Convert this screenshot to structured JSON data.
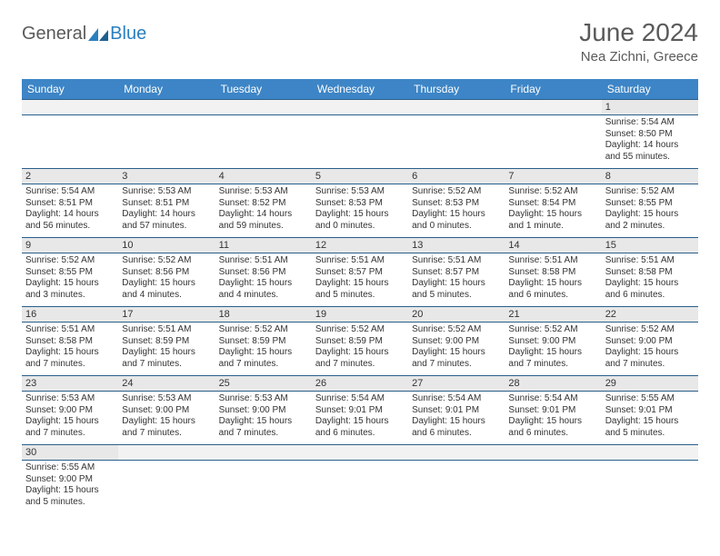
{
  "brand": {
    "general": "General",
    "blue": "Blue"
  },
  "title": "June 2024",
  "location": "Nea Zichni, Greece",
  "colors": {
    "header_bg": "#3d85c6",
    "header_text": "#ffffff",
    "daynum_bg": "#e8e8e8",
    "cell_border": "#2a5f8a",
    "text": "#333333",
    "logo_gray": "#5a5a5a",
    "logo_blue": "#2a7fbf",
    "title_color": "#5a5a5a"
  },
  "weekdays": [
    "Sunday",
    "Monday",
    "Tuesday",
    "Wednesday",
    "Thursday",
    "Friday",
    "Saturday"
  ],
  "weeks": [
    [
      null,
      null,
      null,
      null,
      null,
      null,
      {
        "n": "1",
        "sr": "Sunrise: 5:54 AM",
        "ss": "Sunset: 8:50 PM",
        "dl": "Daylight: 14 hours and 55 minutes."
      }
    ],
    [
      {
        "n": "2",
        "sr": "Sunrise: 5:54 AM",
        "ss": "Sunset: 8:51 PM",
        "dl": "Daylight: 14 hours and 56 minutes."
      },
      {
        "n": "3",
        "sr": "Sunrise: 5:53 AM",
        "ss": "Sunset: 8:51 PM",
        "dl": "Daylight: 14 hours and 57 minutes."
      },
      {
        "n": "4",
        "sr": "Sunrise: 5:53 AM",
        "ss": "Sunset: 8:52 PM",
        "dl": "Daylight: 14 hours and 59 minutes."
      },
      {
        "n": "5",
        "sr": "Sunrise: 5:53 AM",
        "ss": "Sunset: 8:53 PM",
        "dl": "Daylight: 15 hours and 0 minutes."
      },
      {
        "n": "6",
        "sr": "Sunrise: 5:52 AM",
        "ss": "Sunset: 8:53 PM",
        "dl": "Daylight: 15 hours and 0 minutes."
      },
      {
        "n": "7",
        "sr": "Sunrise: 5:52 AM",
        "ss": "Sunset: 8:54 PM",
        "dl": "Daylight: 15 hours and 1 minute."
      },
      {
        "n": "8",
        "sr": "Sunrise: 5:52 AM",
        "ss": "Sunset: 8:55 PM",
        "dl": "Daylight: 15 hours and 2 minutes."
      }
    ],
    [
      {
        "n": "9",
        "sr": "Sunrise: 5:52 AM",
        "ss": "Sunset: 8:55 PM",
        "dl": "Daylight: 15 hours and 3 minutes."
      },
      {
        "n": "10",
        "sr": "Sunrise: 5:52 AM",
        "ss": "Sunset: 8:56 PM",
        "dl": "Daylight: 15 hours and 4 minutes."
      },
      {
        "n": "11",
        "sr": "Sunrise: 5:51 AM",
        "ss": "Sunset: 8:56 PM",
        "dl": "Daylight: 15 hours and 4 minutes."
      },
      {
        "n": "12",
        "sr": "Sunrise: 5:51 AM",
        "ss": "Sunset: 8:57 PM",
        "dl": "Daylight: 15 hours and 5 minutes."
      },
      {
        "n": "13",
        "sr": "Sunrise: 5:51 AM",
        "ss": "Sunset: 8:57 PM",
        "dl": "Daylight: 15 hours and 5 minutes."
      },
      {
        "n": "14",
        "sr": "Sunrise: 5:51 AM",
        "ss": "Sunset: 8:58 PM",
        "dl": "Daylight: 15 hours and 6 minutes."
      },
      {
        "n": "15",
        "sr": "Sunrise: 5:51 AM",
        "ss": "Sunset: 8:58 PM",
        "dl": "Daylight: 15 hours and 6 minutes."
      }
    ],
    [
      {
        "n": "16",
        "sr": "Sunrise: 5:51 AM",
        "ss": "Sunset: 8:58 PM",
        "dl": "Daylight: 15 hours and 7 minutes."
      },
      {
        "n": "17",
        "sr": "Sunrise: 5:51 AM",
        "ss": "Sunset: 8:59 PM",
        "dl": "Daylight: 15 hours and 7 minutes."
      },
      {
        "n": "18",
        "sr": "Sunrise: 5:52 AM",
        "ss": "Sunset: 8:59 PM",
        "dl": "Daylight: 15 hours and 7 minutes."
      },
      {
        "n": "19",
        "sr": "Sunrise: 5:52 AM",
        "ss": "Sunset: 8:59 PM",
        "dl": "Daylight: 15 hours and 7 minutes."
      },
      {
        "n": "20",
        "sr": "Sunrise: 5:52 AM",
        "ss": "Sunset: 9:00 PM",
        "dl": "Daylight: 15 hours and 7 minutes."
      },
      {
        "n": "21",
        "sr": "Sunrise: 5:52 AM",
        "ss": "Sunset: 9:00 PM",
        "dl": "Daylight: 15 hours and 7 minutes."
      },
      {
        "n": "22",
        "sr": "Sunrise: 5:52 AM",
        "ss": "Sunset: 9:00 PM",
        "dl": "Daylight: 15 hours and 7 minutes."
      }
    ],
    [
      {
        "n": "23",
        "sr": "Sunrise: 5:53 AM",
        "ss": "Sunset: 9:00 PM",
        "dl": "Daylight: 15 hours and 7 minutes."
      },
      {
        "n": "24",
        "sr": "Sunrise: 5:53 AM",
        "ss": "Sunset: 9:00 PM",
        "dl": "Daylight: 15 hours and 7 minutes."
      },
      {
        "n": "25",
        "sr": "Sunrise: 5:53 AM",
        "ss": "Sunset: 9:00 PM",
        "dl": "Daylight: 15 hours and 7 minutes."
      },
      {
        "n": "26",
        "sr": "Sunrise: 5:54 AM",
        "ss": "Sunset: 9:01 PM",
        "dl": "Daylight: 15 hours and 6 minutes."
      },
      {
        "n": "27",
        "sr": "Sunrise: 5:54 AM",
        "ss": "Sunset: 9:01 PM",
        "dl": "Daylight: 15 hours and 6 minutes."
      },
      {
        "n": "28",
        "sr": "Sunrise: 5:54 AM",
        "ss": "Sunset: 9:01 PM",
        "dl": "Daylight: 15 hours and 6 minutes."
      },
      {
        "n": "29",
        "sr": "Sunrise: 5:55 AM",
        "ss": "Sunset: 9:01 PM",
        "dl": "Daylight: 15 hours and 5 minutes."
      }
    ],
    [
      {
        "n": "30",
        "sr": "Sunrise: 5:55 AM",
        "ss": "Sunset: 9:00 PM",
        "dl": "Daylight: 15 hours and 5 minutes."
      },
      null,
      null,
      null,
      null,
      null,
      null
    ]
  ]
}
